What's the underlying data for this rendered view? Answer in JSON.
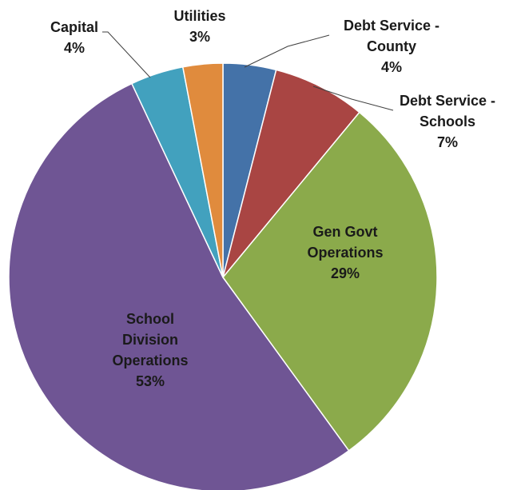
{
  "chart_data": {
    "type": "pie",
    "title": "",
    "slices": [
      {
        "key": "debt_county",
        "label_lines": [
          "Debt Service -",
          "County"
        ],
        "value": 4,
        "value_label": "4%",
        "color": "#4472A8"
      },
      {
        "key": "debt_schools",
        "label_lines": [
          "Debt Service -",
          "Schools"
        ],
        "value": 7,
        "value_label": "7%",
        "color": "#A94543"
      },
      {
        "key": "gen_govt",
        "label_lines": [
          "Gen Govt",
          "Operations"
        ],
        "value": 29,
        "value_label": "29%",
        "color": "#8BAA4B"
      },
      {
        "key": "school_div",
        "label_lines": [
          "School",
          "Division",
          "Operations"
        ],
        "value": 53,
        "value_label": "53%",
        "color": "#6F5594"
      },
      {
        "key": "capital",
        "label_lines": [
          "Capital"
        ],
        "value": 4,
        "value_label": "4%",
        "color": "#42A1BE"
      },
      {
        "key": "utilities",
        "label_lines": [
          "Utilities"
        ],
        "value": 3,
        "value_label": "3%",
        "color": "#E08B3D"
      }
    ],
    "start_angle_deg": 0,
    "direction": "clockwise",
    "legend": "none",
    "label_style": "category name and percentage"
  }
}
